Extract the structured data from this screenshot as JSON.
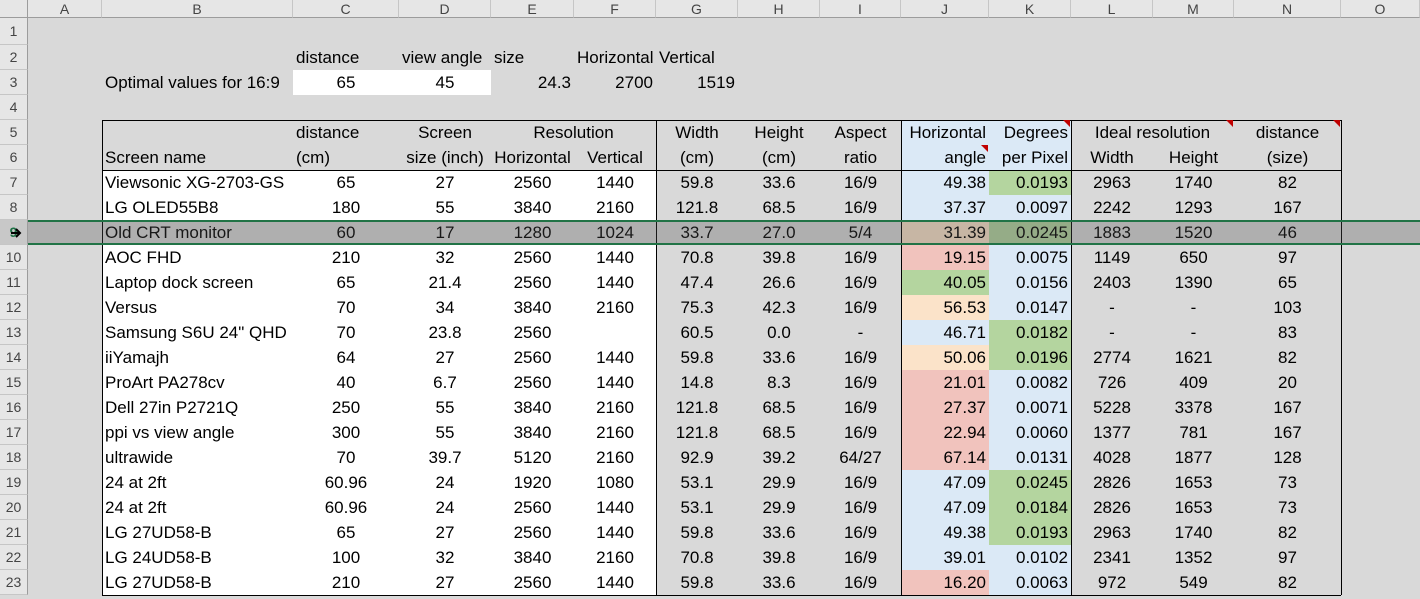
{
  "columns": [
    "A",
    "B",
    "C",
    "D",
    "E",
    "F",
    "G",
    "H",
    "I",
    "J",
    "K",
    "L",
    "M",
    "N",
    "O"
  ],
  "rows": [
    "1",
    "2",
    "3",
    "4",
    "5",
    "6",
    "7",
    "8",
    "9",
    "10",
    "11",
    "12",
    "13",
    "14",
    "15",
    "16",
    "17",
    "18",
    "19",
    "20",
    "21",
    "22",
    "23"
  ],
  "optimal": {
    "labels": [
      "distance",
      "view angle",
      "size",
      "Horizontal",
      "Vertical"
    ],
    "title": "Optimal values for 16:9",
    "values": [
      "65",
      "45",
      "24.3",
      "2700",
      "1519"
    ]
  },
  "headers": {
    "row5": {
      "distance": "distance",
      "screen": "Screen",
      "resolution": "Resolution",
      "width": "Width",
      "height": "Height",
      "aspect": "Aspect",
      "horizontal": "Horizontal",
      "degrees": "Degrees",
      "ideal": "Ideal resolution",
      "ndistance": "distance"
    },
    "row6": {
      "name": "Screen name",
      "cm": "(cm)",
      "size": "size (inch)",
      "horizontal": "Horizontal",
      "vertical": "Vertical",
      "wcm": "(cm)",
      "hcm": "(cm)",
      "ratio": "ratio",
      "angle": "angle",
      "perpixel": "per Pixel",
      "width": "Width",
      "height": "Height",
      "nsize": "(size)"
    }
  },
  "table": [
    {
      "name": "Viewsonic XG-2703-GS",
      "dist": "65",
      "size": "27",
      "h": "2560",
      "v": "1440",
      "w": "59.8",
      "ht": "33.6",
      "ar": "16/9",
      "angle": "49.38",
      "dpp": "0.0193",
      "iw": "2963",
      "ih": "1740",
      "nd": "82",
      "ac": "blue",
      "dc": "green"
    },
    {
      "name": "LG OLED55B8",
      "dist": "180",
      "size": "55",
      "h": "3840",
      "v": "2160",
      "w": "121.8",
      "ht": "68.5",
      "ar": "16/9",
      "angle": "37.37",
      "dpp": "0.0097",
      "iw": "2242",
      "ih": "1293",
      "nd": "167",
      "ac": "blue",
      "dc": "blue"
    },
    {
      "name": "Old CRT monitor",
      "dist": "60",
      "size": "17",
      "h": "1280",
      "v": "1024",
      "w": "33.7",
      "ht": "27.0",
      "ar": "5/4",
      "angle": "31.39",
      "dpp": "0.0245",
      "iw": "1883",
      "ih": "1520",
      "nd": "46",
      "ac": "orange",
      "dc": "green"
    },
    {
      "name": "AOC FHD",
      "dist": "210",
      "size": "32",
      "h": "2560",
      "v": "1440",
      "w": "70.8",
      "ht": "39.8",
      "ar": "16/9",
      "angle": "19.15",
      "dpp": "0.0075",
      "iw": "1149",
      "ih": "650",
      "nd": "97",
      "ac": "red",
      "dc": "blue"
    },
    {
      "name": "Laptop dock screen",
      "dist": "65",
      "size": "21.4",
      "h": "2560",
      "v": "1440",
      "w": "47.4",
      "ht": "26.6",
      "ar": "16/9",
      "angle": "40.05",
      "dpp": "0.0156",
      "iw": "2403",
      "ih": "1390",
      "nd": "65",
      "ac": "green",
      "dc": "blue"
    },
    {
      "name": "Versus",
      "dist": "70",
      "size": "34",
      "h": "3840",
      "v": "2160",
      "w": "75.3",
      "ht": "42.3",
      "ar": "16/9",
      "angle": "56.53",
      "dpp": "0.0147",
      "iw": "-",
      "ih": "-",
      "nd": "103",
      "ac": "orange",
      "dc": "blue"
    },
    {
      "name": "Samsung S6U 24\" QHD",
      "dist": "70",
      "size": "23.8",
      "h": "2560",
      "v": "",
      "w": "60.5",
      "ht": "0.0",
      "ar": "-",
      "angle": "46.71",
      "dpp": "0.0182",
      "iw": "-",
      "ih": "-",
      "nd": "83",
      "ac": "blue",
      "dc": "green"
    },
    {
      "name": "iiYamajh",
      "dist": "64",
      "size": "27",
      "h": "2560",
      "v": "1440",
      "w": "59.8",
      "ht": "33.6",
      "ar": "16/9",
      "angle": "50.06",
      "dpp": "0.0196",
      "iw": "2774",
      "ih": "1621",
      "nd": "82",
      "ac": "orange",
      "dc": "green"
    },
    {
      "name": "ProArt PA278cv",
      "dist": "40",
      "size": "6.7",
      "h": "2560",
      "v": "1440",
      "w": "14.8",
      "ht": "8.3",
      "ar": "16/9",
      "angle": "21.01",
      "dpp": "0.0082",
      "iw": "726",
      "ih": "409",
      "nd": "20",
      "ac": "red",
      "dc": "blue"
    },
    {
      "name": "Dell 27in P2721Q",
      "dist": "250",
      "size": "55",
      "h": "3840",
      "v": "2160",
      "w": "121.8",
      "ht": "68.5",
      "ar": "16/9",
      "angle": "27.37",
      "dpp": "0.0071",
      "iw": "5228",
      "ih": "3378",
      "nd": "167",
      "ac": "red",
      "dc": "blue"
    },
    {
      "name": "ppi vs view angle",
      "dist": "300",
      "size": "55",
      "h": "3840",
      "v": "2160",
      "w": "121.8",
      "ht": "68.5",
      "ar": "16/9",
      "angle": "22.94",
      "dpp": "0.0060",
      "iw": "1377",
      "ih": "781",
      "nd": "167",
      "ac": "red",
      "dc": "blue"
    },
    {
      "name": "ultrawide",
      "dist": "70",
      "size": "39.7",
      "h": "5120",
      "v": "2160",
      "w": "92.9",
      "ht": "39.2",
      "ar": "64/27",
      "angle": "67.14",
      "dpp": "0.0131",
      "iw": "4028",
      "ih": "1877",
      "nd": "128",
      "ac": "red",
      "dc": "blue"
    },
    {
      "name": "24 at 2ft",
      "dist": "60.96",
      "size": "24",
      "h": "1920",
      "v": "1080",
      "w": "53.1",
      "ht": "29.9",
      "ar": "16/9",
      "angle": "47.09",
      "dpp": "0.0245",
      "iw": "2826",
      "ih": "1653",
      "nd": "73",
      "ac": "blue",
      "dc": "green"
    },
    {
      "name": "24 at 2ft",
      "dist": "60.96",
      "size": "24",
      "h": "2560",
      "v": "1440",
      "w": "53.1",
      "ht": "29.9",
      "ar": "16/9",
      "angle": "47.09",
      "dpp": "0.0184",
      "iw": "2826",
      "ih": "1653",
      "nd": "73",
      "ac": "blue",
      "dc": "green"
    },
    {
      "name": "LG 27UD58-B",
      "dist": "65",
      "size": "27",
      "h": "2560",
      "v": "1440",
      "w": "59.8",
      "ht": "33.6",
      "ar": "16/9",
      "angle": "49.38",
      "dpp": "0.0193",
      "iw": "2963",
      "ih": "1740",
      "nd": "82",
      "ac": "blue",
      "dc": "green"
    },
    {
      "name": "LG 24UD58-B",
      "dist": "100",
      "size": "32",
      "h": "3840",
      "v": "2160",
      "w": "70.8",
      "ht": "39.8",
      "ar": "16/9",
      "angle": "39.01",
      "dpp": "0.0102",
      "iw": "2341",
      "ih": "1352",
      "nd": "97",
      "ac": "blue",
      "dc": "blue"
    },
    {
      "name": "LG 27UD58-B",
      "dist": "210",
      "size": "27",
      "h": "2560",
      "v": "1440",
      "w": "59.8",
      "ht": "33.6",
      "ar": "16/9",
      "angle": "16.20",
      "dpp": "0.0063",
      "iw": "972",
      "ih": "549",
      "nd": "82",
      "ac": "red",
      "dc": "blue"
    }
  ]
}
